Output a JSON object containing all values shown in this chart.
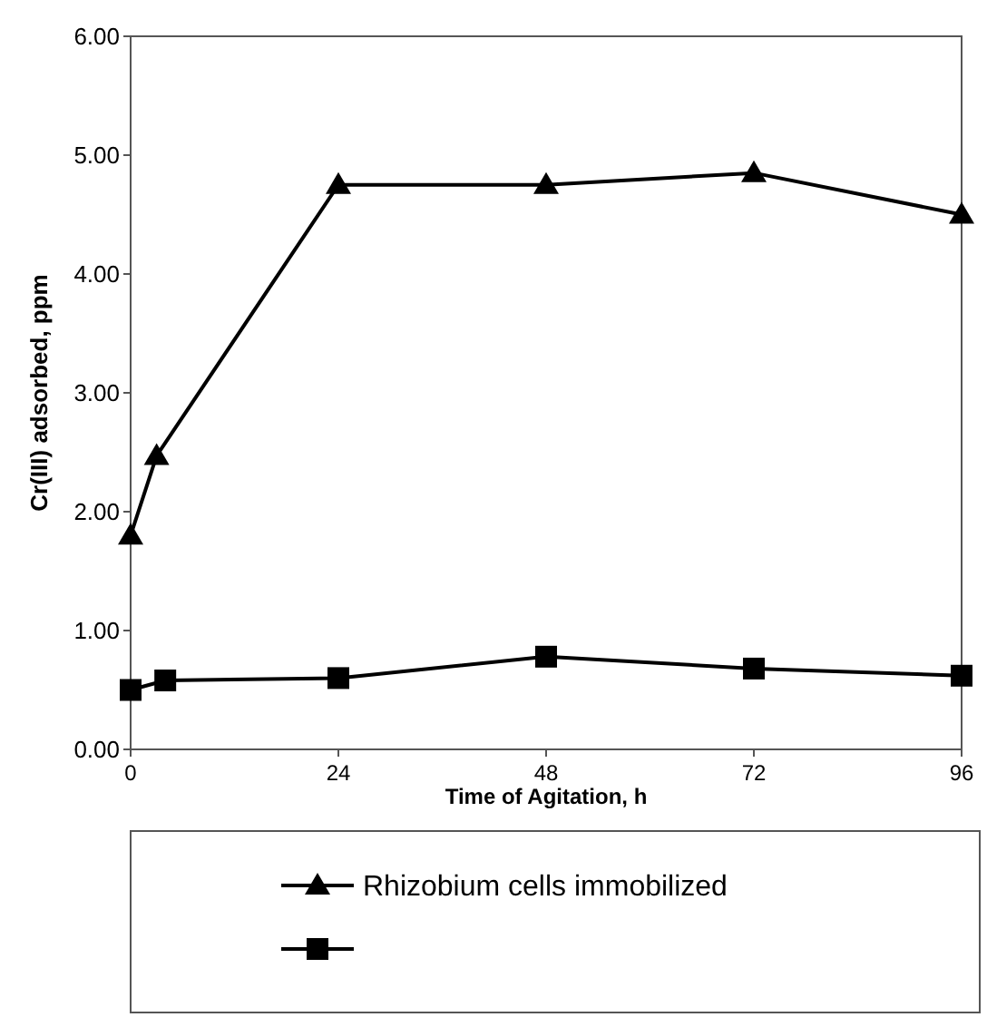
{
  "chart_data": {
    "type": "line",
    "xlabel": "Time of Agitation, h",
    "ylabel": "Cr(III) adsorbed, ppm",
    "xlim": [
      0,
      96
    ],
    "xticks": [
      0,
      24,
      48,
      72,
      96
    ],
    "ylim": [
      0,
      6
    ],
    "yticks": [
      {
        "value": 0,
        "label": "0.00"
      },
      {
        "value": 1,
        "label": "1.00"
      },
      {
        "value": 2,
        "label": "2.00"
      },
      {
        "value": 3,
        "label": "3.00"
      },
      {
        "value": 4,
        "label": "4.00"
      },
      {
        "value": 5,
        "label": "5.00"
      },
      {
        "value": 6,
        "label": "6.00"
      }
    ],
    "legend": "bottom",
    "grid": false,
    "line_style": "solid",
    "series": [
      {
        "name": "Rhizobium cells immobilized",
        "color": "#000000",
        "marker": "triangle",
        "x": [
          0,
          3,
          24,
          48,
          72,
          96
        ],
        "values": [
          1.8,
          2.47,
          4.75,
          4.75,
          4.85,
          4.5
        ]
      },
      {
        "color": "#000000",
        "marker": "square",
        "x": [
          0,
          4,
          24,
          48,
          72,
          96
        ],
        "values": [
          0.5,
          0.58,
          0.6,
          0.78,
          0.68,
          0.62
        ]
      }
    ]
  }
}
